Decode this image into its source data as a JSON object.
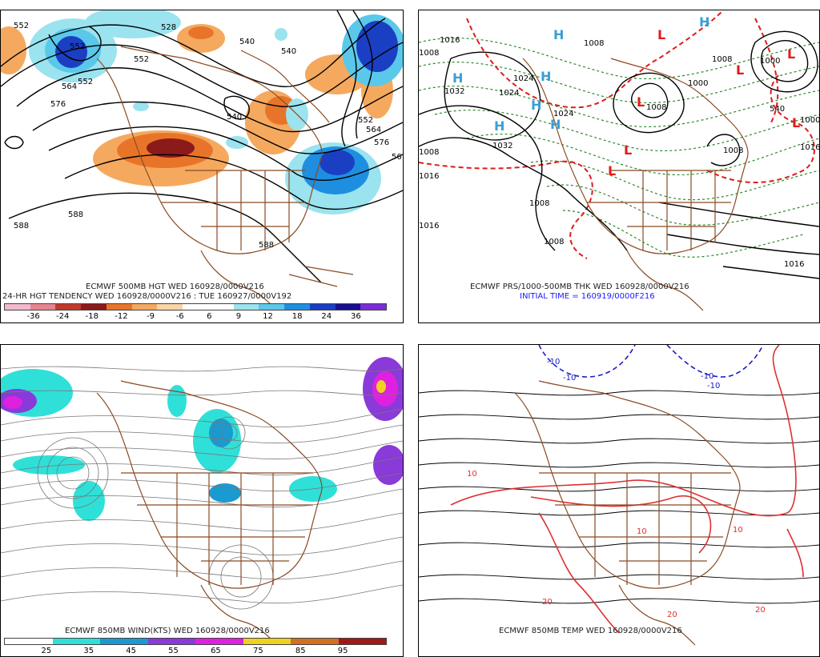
{
  "panels": {
    "hgt500": {
      "title": "ECMWF 500MB HGT WED 160928/0000V216",
      "subtitle": "24-HR HGT TENDENCY WED 160928/0000V216 : TUE 160927/0000V192",
      "contour_labels": [
        "552",
        "552",
        "528",
        "540",
        "540",
        "552",
        "576",
        "564",
        "552",
        "564",
        "576",
        "588",
        "588",
        "588",
        "540",
        "552",
        "56"
      ],
      "colorbar_colors": [
        "#f2b9cc",
        "#e8848f",
        "#c0392b",
        "#8b1a1a",
        "#e8742a",
        "#f5a95e",
        "#fad6a5",
        "#ffffff",
        "#ffffff",
        "#9be3ef",
        "#5ac8ea",
        "#1e8fe0",
        "#1b3fc2",
        "#1a0f8c",
        "#7a2fd6"
      ],
      "colorbar_ticks": [
        "-36",
        "-24",
        "-18",
        "-12",
        "-9",
        "-6",
        "6",
        "9",
        "12",
        "18",
        "24",
        "36"
      ]
    },
    "prs1000": {
      "title": "ECMWF PRS/1000-500MB THK WED 160928/0000V216",
      "subtitle": "INITIAL TIME = 160919/0000F216",
      "centers": [
        {
          "type": "H",
          "label": "H"
        },
        {
          "type": "H",
          "label": "H"
        },
        {
          "type": "H",
          "label": "H"
        },
        {
          "type": "H",
          "label": "H"
        },
        {
          "type": "H",
          "label": "H"
        },
        {
          "type": "H",
          "label": "H"
        },
        {
          "type": "H",
          "label": "H"
        },
        {
          "type": "L",
          "label": "L"
        },
        {
          "type": "L",
          "label": "L"
        },
        {
          "type": "L",
          "label": "L"
        },
        {
          "type": "L",
          "label": "L"
        },
        {
          "type": "L",
          "label": "L"
        },
        {
          "type": "L",
          "label": "L"
        },
        {
          "type": "L",
          "label": "L"
        }
      ],
      "contour_labels": [
        "1016",
        "1008",
        "1032",
        "1024",
        "1024",
        "1032",
        "1024",
        "1008",
        "1008",
        "1000",
        "1008",
        "1000",
        "1008",
        "1016",
        "1016",
        "1016",
        "1008",
        "1016",
        "1008",
        "540",
        "1000",
        "1008"
      ]
    },
    "wind850": {
      "title": "ECMWF 850MB WIND(KTS) WED 160928/0000V216",
      "colorbar_colors": [
        "#ffffff",
        "#2fe0d8",
        "#1a9ad0",
        "#8a3ad8",
        "#e020e0",
        "#f0d020",
        "#d07020",
        "#a01818"
      ],
      "colorbar_ticks": [
        "25",
        "35",
        "45",
        "55",
        "65",
        "75",
        "85",
        "95"
      ]
    },
    "temp850": {
      "title": "ECMWF 850MB TEMP WED 160928/0000V216",
      "contour_labels": [
        "-10",
        "-10",
        "10",
        "10",
        "10",
        "20",
        "20",
        "20",
        "-10",
        "-10"
      ]
    }
  }
}
